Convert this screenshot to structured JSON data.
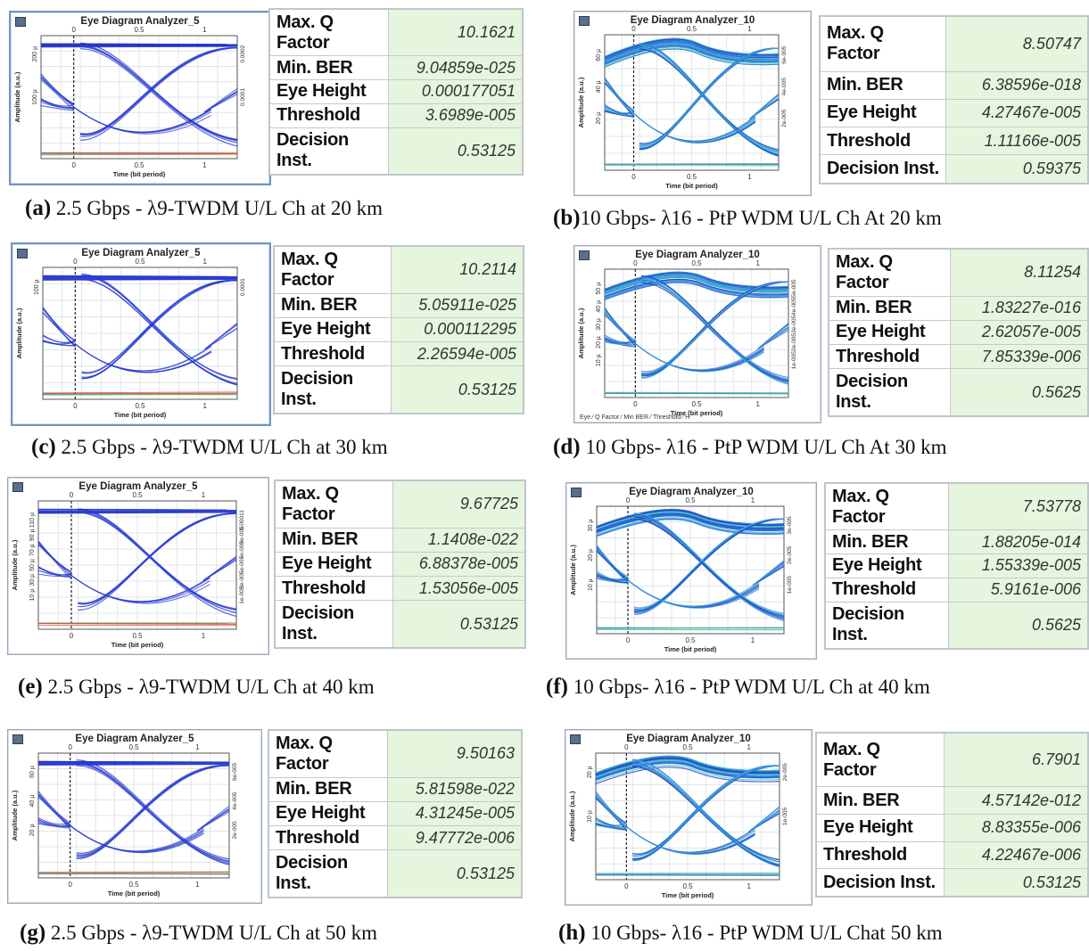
{
  "panels": [
    {
      "id": "a",
      "analyzer": "Eye Diagram Analyzer_5",
      "rate": "2.5G",
      "caption_letter": "(a)",
      "caption_text": " 2.5 Gbps - λ9-TWDM U/L Ch at 20 km",
      "xticks_top": [
        "0",
        "0.5",
        "1"
      ],
      "xticks_bottom": [
        "0",
        "0.5",
        "1"
      ],
      "xlabel": "Time (bit period)",
      "ylabel": "Amplitude (a.u.)",
      "yticks_left": [
        "200 µ",
        "100 µ"
      ],
      "yticks_right": [
        "0.0002",
        "0.0001"
      ],
      "metrics": {
        "max_q_label": "Max. Q Factor",
        "max_q": "10.1621",
        "min_ber_label": "Min. BER",
        "min_ber": "9.04859e-025",
        "eye_height_label": "Eye Height",
        "eye_height": "0.000177051",
        "threshold_label": "Threshold",
        "threshold": "3.6989e-005",
        "decision_label": "Decision Inst.",
        "decision": "0.53125"
      }
    },
    {
      "id": "b",
      "analyzer": "Eye Diagram Analyzer_10",
      "rate": "10G",
      "caption_letter": "(b)",
      "caption_text": "10 Gbps- λ16 - PtP WDM U/L Ch  At 20 km",
      "xticks_top": [
        "0",
        "0.5",
        "1"
      ],
      "xticks_bottom": [
        "0",
        "0.5",
        "1"
      ],
      "xlabel": "Time (bit period)",
      "ylabel": "Amplitude (a.u.)",
      "yticks_left": [
        "60 µ",
        "40 µ",
        "20 µ"
      ],
      "yticks_right": [
        "6e-005",
        "4e-005",
        "2e-005"
      ],
      "metrics": {
        "max_q_label": "Max. Q Factor",
        "max_q": "8.50747",
        "min_ber_label": "Min. BER",
        "min_ber": "6.38596e-018",
        "eye_height_label": "Eye Height",
        "eye_height": "4.27467e-005",
        "threshold_label": "Threshold",
        "threshold": "1.11166e-005",
        "decision_label": "Decision Inst.",
        "decision": "0.59375"
      }
    },
    {
      "id": "c",
      "analyzer": "Eye Diagram Analyzer_5",
      "rate": "2.5G",
      "caption_letter": "(c)",
      "caption_text": " 2.5 Gbps - λ9-TWDM U/L Ch at 30 km",
      "xticks_top": [
        "0",
        "0.5",
        "1"
      ],
      "xticks_bottom": [
        "0",
        "0.5",
        "1"
      ],
      "xlabel": "Time (bit period)",
      "ylabel": "Amplitude (a.u.)",
      "yticks_left": [
        "100 µ"
      ],
      "yticks_right": [
        "0.0001"
      ],
      "metrics": {
        "max_q_label": "Max. Q Factor",
        "max_q": "10.2114",
        "min_ber_label": "Min. BER",
        "min_ber": "5.05911e-025",
        "eye_height_label": "Eye Height",
        "eye_height": "0.000112295",
        "threshold_label": "Threshold",
        "threshold": "2.26594e-005",
        "decision_label": "Decision Inst.",
        "decision": "0.53125"
      }
    },
    {
      "id": "d",
      "analyzer": "Eye Diagram Analyzer_10",
      "rate": "10G",
      "caption_letter": "(d)",
      "caption_text": " 10 Gbps- λ16 - PtP WDM U/L Ch  At 30 km",
      "xticks_top": [
        "0",
        "0.5",
        "1"
      ],
      "xticks_bottom": [
        "0",
        "0.5",
        "1"
      ],
      "xlabel": "Time (bit period)",
      "ylabel": "Amplitude (a.u.)",
      "yticks_left": [
        "50 µ",
        "40 µ",
        "30 µ",
        "20 µ",
        "10 µ"
      ],
      "yticks_right": [
        "5e-005",
        "4e-005",
        "3e-005",
        "2e-005",
        "1e-005"
      ],
      "tabs": "Eye ⁄ Q Factor ⁄ Min BER ⁄ Threshold ⁄ H",
      "metrics": {
        "max_q_label": "Max. Q Factor",
        "max_q": "8.11254",
        "min_ber_label": "Min. BER",
        "min_ber": "1.83227e-016",
        "eye_height_label": "Eye Height",
        "eye_height": "2.62057e-005",
        "threshold_label": "Threshold",
        "threshold": "7.85339e-006",
        "decision_label": "Decision Inst.",
        "decision": "0.5625"
      }
    },
    {
      "id": "e",
      "analyzer": "Eye Diagram Analyzer_5",
      "rate": "2.5G",
      "caption_letter": "(e)",
      "caption_text": " 2.5 Gbps - λ9-TWDM U/L Ch at 40 km",
      "xticks_top": [
        "0",
        "0.5",
        "1"
      ],
      "xticks_bottom": [
        "0",
        "0.5",
        "1"
      ],
      "xlabel": "Time (bit period)",
      "ylabel": "Amplitude (a.u.)",
      "yticks_left": [
        "110 µ",
        "90 µ",
        "70 µ",
        "50 µ",
        "30 µ",
        "10 µ"
      ],
      "yticks_right": [
        "0.00011",
        "9e-005",
        "7e-005",
        "5e-005",
        "3e-005",
        "1e-005"
      ],
      "metrics": {
        "max_q_label": "Max. Q Factor",
        "max_q": "9.67725",
        "min_ber_label": "Min. BER",
        "min_ber": "1.1408e-022",
        "eye_height_label": "Eye Height",
        "eye_height": "6.88378e-005",
        "threshold_label": "Threshold",
        "threshold": "1.53056e-005",
        "decision_label": "Decision Inst.",
        "decision": "0.53125"
      }
    },
    {
      "id": "f",
      "analyzer": "Eye Diagram Analyzer_10",
      "rate": "10G",
      "caption_letter": "(f)",
      "caption_text": " 10 Gbps- λ16 - PtP WDM U/L Ch at 40 km",
      "xticks_top": [
        "0",
        "0.5",
        "1"
      ],
      "xticks_bottom": [
        "0",
        "0.5",
        "1"
      ],
      "xlabel": "Time (bit period)",
      "ylabel": "Amplitude (a.u.)",
      "yticks_left": [
        "30 µ",
        "20 µ",
        "10 µ"
      ],
      "yticks_right": [
        "3e-005",
        "2e-005",
        "1e-005"
      ],
      "metrics": {
        "max_q_label": "Max. Q Factor",
        "max_q": "7.53778",
        "min_ber_label": "Min. BER",
        "min_ber": "1.88205e-014",
        "eye_height_label": "Eye Height",
        "eye_height": "1.55339e-005",
        "threshold_label": "Threshold",
        "threshold": "5.9161e-006",
        "decision_label": "Decision Inst.",
        "decision": "0.5625"
      }
    },
    {
      "id": "g",
      "analyzer": "Eye Diagram Analyzer_5",
      "rate": "2.5G",
      "caption_letter": "(g)",
      "caption_text": " 2.5 Gbps - λ9-TWDM U/L Ch at 50 km",
      "xticks_top": [
        "0",
        "0.5",
        "1"
      ],
      "xticks_bottom": [
        "0",
        "0.5",
        "1"
      ],
      "xlabel": "Time (bit period)",
      "ylabel": "Amplitude (a.u.)",
      "yticks_left": [
        "60 µ",
        "40 µ",
        "20 µ"
      ],
      "yticks_right": [
        "6e-005",
        "4e-005",
        "2e-005"
      ],
      "metrics": {
        "max_q_label": "Max. Q Factor",
        "max_q": "9.50163",
        "min_ber_label": "Min. BER",
        "min_ber": "5.81598e-022",
        "eye_height_label": "Eye Height",
        "eye_height": "4.31245e-005",
        "threshold_label": "Threshold",
        "threshold": "9.47772e-006",
        "decision_label": "Decision Inst.",
        "decision": "0.53125"
      }
    },
    {
      "id": "h",
      "analyzer": "Eye Diagram Analyzer_10",
      "rate": "10G",
      "caption_letter": "(h)",
      "caption_text": " 10 Gbps- λ16 - PtP WDM U/L Chat 50 km",
      "xticks_top": [
        "0",
        "0.5",
        "1"
      ],
      "xticks_bottom": [
        "0",
        "0.5",
        "1"
      ],
      "xlabel": "Time (bit period)",
      "ylabel": "Amplitude (a.u.)",
      "yticks_left": [
        "20 µ",
        "10 µ"
      ],
      "yticks_right": [
        "2e-005",
        "1e-005"
      ],
      "metrics": {
        "max_q_label": "Max. Q Factor",
        "max_q": "6.7901",
        "min_ber_label": "Min. BER",
        "min_ber": "4.57142e-012",
        "eye_height_label": "Eye Height",
        "eye_height": "8.83355e-006",
        "threshold_label": "Threshold",
        "threshold": "4.22467e-006",
        "decision_label": "Decision Inst.",
        "decision": "0.53125"
      }
    }
  ],
  "chart_data": [
    {
      "type": "table",
      "title": "Eye Diagram Analyzer_5",
      "rows": [
        [
          "Max. Q Factor",
          "10.1621"
        ],
        [
          "Min. BER",
          "9.04859e-025"
        ],
        [
          "Eye Height",
          "0.000177051"
        ],
        [
          "Threshold",
          "3.6989e-005"
        ],
        [
          "Decision Inst.",
          "0.53125"
        ]
      ]
    },
    {
      "type": "table",
      "title": "Eye Diagram Analyzer_10",
      "rows": [
        [
          "Max. Q Factor",
          "8.50747"
        ],
        [
          "Min. BER",
          "6.38596e-018"
        ],
        [
          "Eye Height",
          "4.27467e-005"
        ],
        [
          "Threshold",
          "1.11166e-005"
        ],
        [
          "Decision Inst.",
          "0.59375"
        ]
      ]
    },
    {
      "type": "table",
      "title": "Eye Diagram Analyzer_5",
      "rows": [
        [
          "Max. Q Factor",
          "10.2114"
        ],
        [
          "Min. BER",
          "5.05911e-025"
        ],
        [
          "Eye Height",
          "0.000112295"
        ],
        [
          "Threshold",
          "2.26594e-005"
        ],
        [
          "Decision Inst.",
          "0.53125"
        ]
      ]
    },
    {
      "type": "table",
      "title": "Eye Diagram Analyzer_10",
      "rows": [
        [
          "Max. Q Factor",
          "8.11254"
        ],
        [
          "Min. BER",
          "1.83227e-016"
        ],
        [
          "Eye Height",
          "2.62057e-005"
        ],
        [
          "Threshold",
          "7.85339e-006"
        ],
        [
          "Decision Inst.",
          "0.5625"
        ]
      ]
    },
    {
      "type": "table",
      "title": "Eye Diagram Analyzer_5",
      "rows": [
        [
          "Max. Q Factor",
          "9.67725"
        ],
        [
          "Min. BER",
          "1.1408e-022"
        ],
        [
          "Eye Height",
          "6.88378e-005"
        ],
        [
          "Threshold",
          "1.53056e-005"
        ],
        [
          "Decision Inst.",
          "0.53125"
        ]
      ]
    },
    {
      "type": "table",
      "title": "Eye Diagram Analyzer_10",
      "rows": [
        [
          "Max. Q Factor",
          "7.53778"
        ],
        [
          "Min. BER",
          "1.88205e-014"
        ],
        [
          "Eye Height",
          "1.55339e-005"
        ],
        [
          "Threshold",
          "5.9161e-006"
        ],
        [
          "Decision Inst.",
          "0.5625"
        ]
      ]
    },
    {
      "type": "table",
      "title": "Eye Diagram Analyzer_5",
      "rows": [
        [
          "Max. Q Factor",
          "9.50163"
        ],
        [
          "Min. BER",
          "5.81598e-022"
        ],
        [
          "Eye Height",
          "4.31245e-005"
        ],
        [
          "Threshold",
          "9.47772e-006"
        ],
        [
          "Decision Inst.",
          "0.53125"
        ]
      ]
    },
    {
      "type": "table",
      "title": "Eye Diagram Analyzer_10",
      "rows": [
        [
          "Max. Q Factor",
          "6.7901"
        ],
        [
          "Min. BER",
          "4.57142e-012"
        ],
        [
          "Eye Height",
          "8.83355e-006"
        ],
        [
          "Threshold",
          "4.22467e-006"
        ],
        [
          "Decision Inst.",
          "0.53125"
        ]
      ]
    }
  ]
}
